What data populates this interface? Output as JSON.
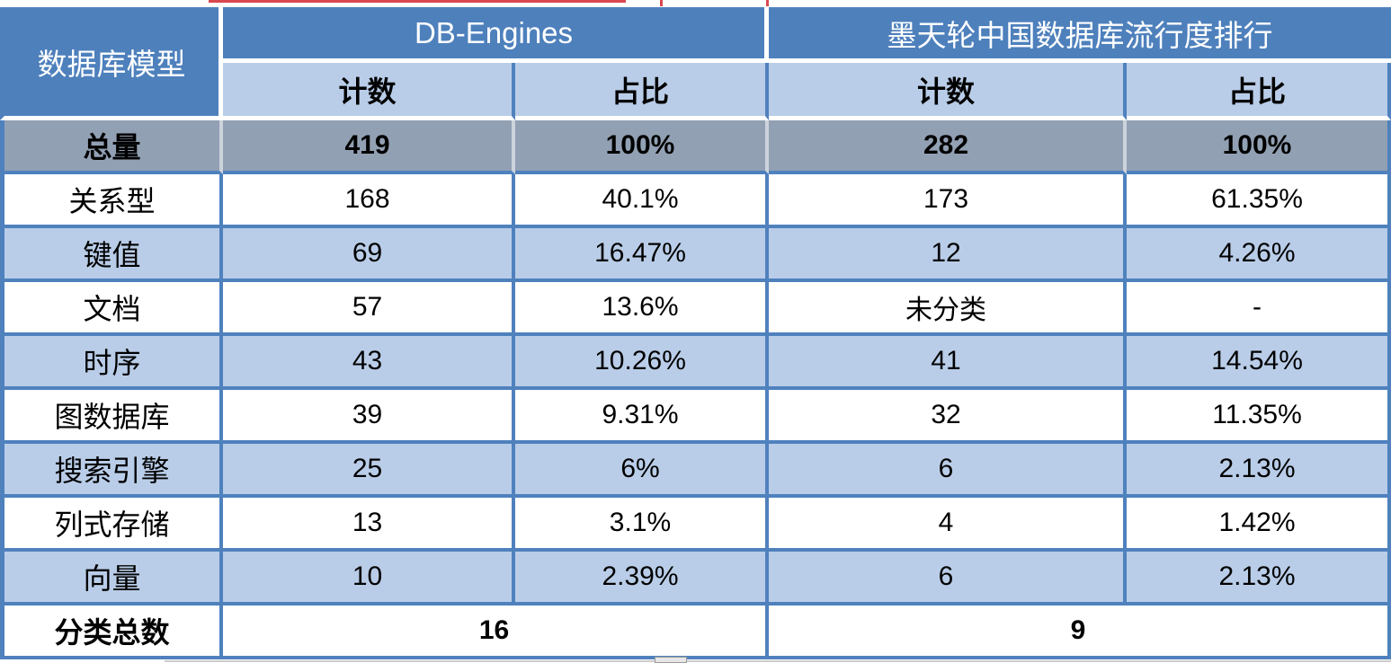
{
  "colors": {
    "header_blue": "#4e80bc",
    "subheader_light_blue": "#b9cde8",
    "total_row_gray": "#92a0b3",
    "grid_border_blue": "#4f81bd",
    "header_text": "#ffffff",
    "body_text": "#000000",
    "artifact_red_line": "#d9484f",
    "artifact_gray": "#cccccc"
  },
  "table": {
    "corner_header": "数据库模型",
    "groups": [
      {
        "label": "DB-Engines",
        "columns": [
          "计数",
          "占比"
        ]
      },
      {
        "label": "墨天轮中国数据库流行度排行",
        "columns": [
          "计数",
          "占比"
        ]
      }
    ],
    "rows": [
      {
        "label": "总量",
        "values": [
          "419",
          "100%",
          "282",
          "100%"
        ],
        "variant": "total"
      },
      {
        "label": "关系型",
        "values": [
          "168",
          "40.1%",
          "173",
          "61.35%"
        ],
        "variant": "white"
      },
      {
        "label": "键值",
        "values": [
          "69",
          "16.47%",
          "12",
          "4.26%"
        ],
        "variant": "blue"
      },
      {
        "label": "文档",
        "values": [
          "57",
          "13.6%",
          "未分类",
          "-"
        ],
        "variant": "white"
      },
      {
        "label": "时序",
        "values": [
          "43",
          "10.26%",
          "41",
          "14.54%"
        ],
        "variant": "blue"
      },
      {
        "label": "图数据库",
        "values": [
          "39",
          "9.31%",
          "32",
          "11.35%"
        ],
        "variant": "white"
      },
      {
        "label": "搜索引擎",
        "values": [
          "25",
          "6%",
          "6",
          "2.13%"
        ],
        "variant": "blue"
      },
      {
        "label": "列式存储",
        "values": [
          "13",
          "3.1%",
          "4",
          "1.42%"
        ],
        "variant": "white"
      },
      {
        "label": "向量",
        "values": [
          "10",
          "2.39%",
          "6",
          "2.13%"
        ],
        "variant": "blue"
      }
    ],
    "summary": {
      "label": "分类总数",
      "values": [
        "16",
        "9"
      ]
    }
  },
  "chart_data": {
    "type": "table",
    "title": "",
    "column_groups": [
      "数据库模型",
      "DB-Engines",
      "墨天轮中国数据库流行度排行"
    ],
    "columns": [
      "数据库模型",
      "DB-Engines 计数",
      "DB-Engines 占比",
      "墨天轮中国数据库流行度排行 计数",
      "墨天轮中国数据库流行度排行 占比"
    ],
    "rows": [
      [
        "总量",
        "419",
        "100%",
        "282",
        "100%"
      ],
      [
        "关系型",
        "168",
        "40.1%",
        "173",
        "61.35%"
      ],
      [
        "键值",
        "69",
        "16.47%",
        "12",
        "4.26%"
      ],
      [
        "文档",
        "57",
        "13.6%",
        "未分类",
        "-"
      ],
      [
        "时序",
        "43",
        "10.26%",
        "41",
        "14.54%"
      ],
      [
        "图数据库",
        "39",
        "9.31%",
        "32",
        "11.35%"
      ],
      [
        "搜索引擎",
        "25",
        "6%",
        "6",
        "2.13%"
      ],
      [
        "列式存储",
        "13",
        "3.1%",
        "4",
        "1.42%"
      ],
      [
        "向量",
        "10",
        "2.39%",
        "6",
        "2.13%"
      ],
      [
        "分类总数",
        "16",
        "16",
        "9",
        "9"
      ]
    ]
  }
}
